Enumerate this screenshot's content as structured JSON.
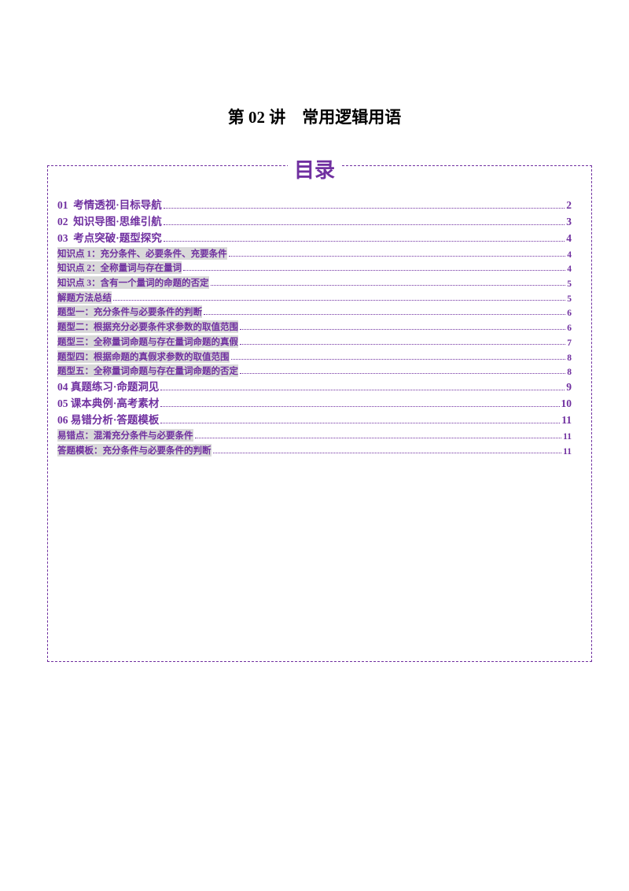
{
  "header": {
    "title": "第 02 讲    常用逻辑用语"
  },
  "toc": {
    "heading": "目录",
    "sections": [
      {
        "text": "01  考情透视·目标导航",
        "page": "2"
      },
      {
        "text": "02  知识导图·思维引航",
        "page": "3"
      },
      {
        "text": "03  考点突破·题型探究",
        "page": "4",
        "items": [
          {
            "text": "知识点 1：充分条件、必要条件、充要条件",
            "page": "4"
          },
          {
            "text": "知识点 2：全称量词与存在量词",
            "page": "4"
          },
          {
            "text": "知识点 3：含有一个量词的命题的否定",
            "page": "5"
          },
          {
            "text": "解题方法总结",
            "page": "5"
          },
          {
            "text": "题型一：充分条件与必要条件的判断",
            "page": "6"
          },
          {
            "text": "题型二：根据充分必要条件求参数的取值范围",
            "page": "6"
          },
          {
            "text": "题型三：全称量词命题与存在量词命题的真假",
            "page": "7"
          },
          {
            "text": "题型四：根据命题的真假求参数的取值范围",
            "page": "8"
          },
          {
            "text": "题型五：全称量词命题与存在量词命题的否定",
            "page": "8"
          }
        ]
      },
      {
        "text": "04 真题练习·命题洞见",
        "page": "9"
      },
      {
        "text": "05 课本典例·高考素材",
        "page": "10"
      },
      {
        "text": "06 易错分析·答题模板",
        "page": "11",
        "items": [
          {
            "text": "易错点：混淆充分条件与必要条件",
            "page": "11"
          },
          {
            "text": "答题模板：充分条件与必要条件的判断",
            "page": "11"
          }
        ]
      }
    ]
  }
}
